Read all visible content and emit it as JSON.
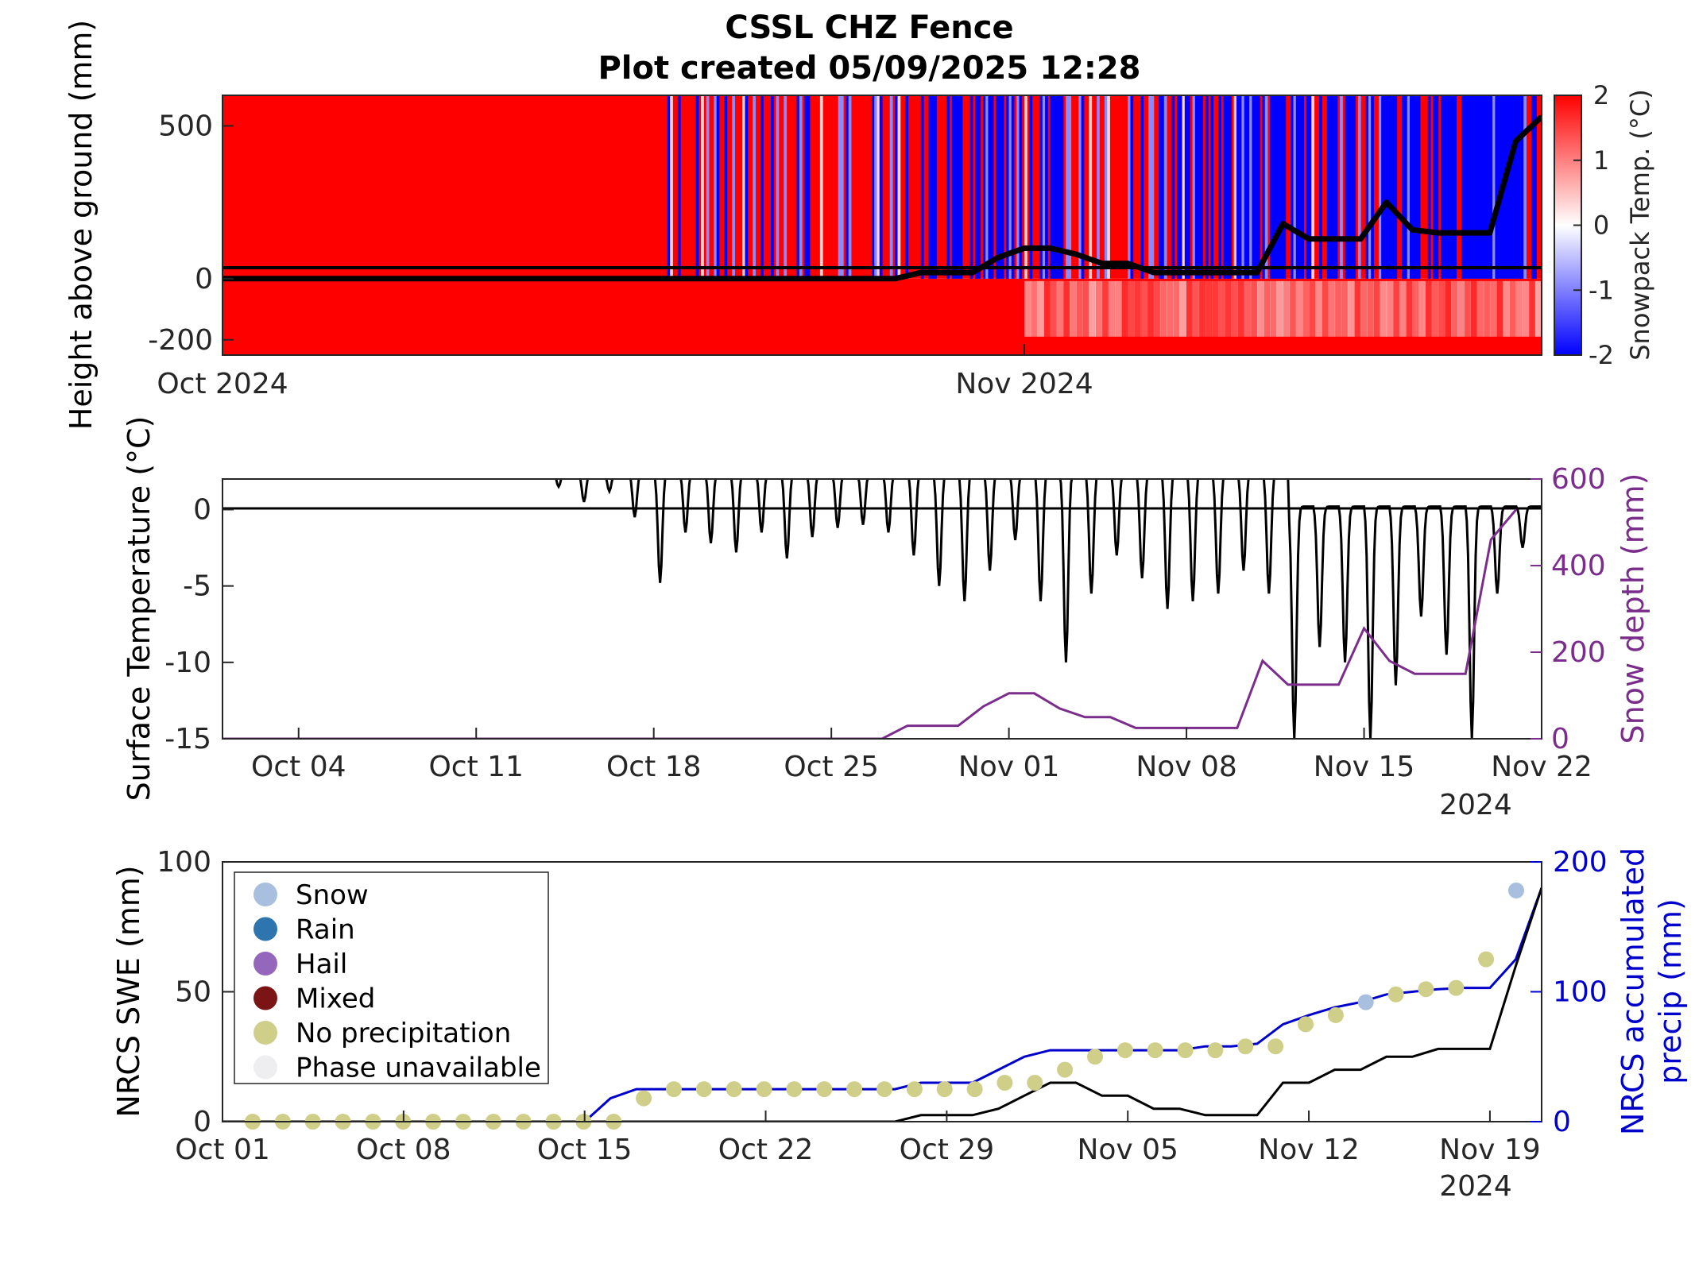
{
  "title": {
    "line1": "CSSL CHZ Fence",
    "line2": "Plot created 05/09/2025 12:28"
  },
  "colors": {
    "warm": "#ff0000",
    "cold": "#0000ff",
    "snow_depth": "#7b2d8b",
    "precip": "#0000cc",
    "swe": "#000000",
    "axis": "#262626"
  },
  "chart_data": [
    {
      "id": "snowpack-profile",
      "type": "heatmap",
      "xlabel": "",
      "ylabel": "Height above ground (mm)",
      "xlim": [
        "2024-10-01",
        "2024-11-21"
      ],
      "ylim": [
        -250,
        600
      ],
      "yticks": [
        500,
        0,
        -200
      ],
      "ytick_labels": [
        "500",
        "0",
        "-200"
      ],
      "xticks": [
        "2024-10-01",
        "2024-11-01"
      ],
      "xtick_labels": [
        "Oct 2024",
        "Nov 2024"
      ],
      "colorbar": {
        "label": "Snowpack Temp. (°C)",
        "range": [
          -2,
          2
        ],
        "ticks": [
          "2",
          "1",
          "0",
          "-1",
          "-2"
        ],
        "colormap": "blue-white-red"
      },
      "zero_line": 0,
      "snow_depth_overlay": {
        "x": [
          "2024-10-01",
          "2024-10-27",
          "2024-10-28",
          "2024-10-30",
          "2024-10-31",
          "2024-11-01",
          "2024-11-02",
          "2024-11-03",
          "2024-11-04",
          "2024-11-05",
          "2024-11-06",
          "2024-11-10",
          "2024-11-11",
          "2024-11-12",
          "2024-11-14",
          "2024-11-15",
          "2024-11-16",
          "2024-11-17",
          "2024-11-18",
          "2024-11-19",
          "2024-11-20",
          "2024-11-21"
        ],
        "y": [
          0,
          0,
          20,
          20,
          70,
          100,
          100,
          80,
          50,
          50,
          20,
          20,
          180,
          130,
          130,
          250,
          160,
          150,
          150,
          150,
          450,
          530
        ]
      }
    },
    {
      "id": "surface-temperature",
      "type": "line",
      "xlabel": "",
      "ylabel": "Surface Temperature (°C)",
      "ylabel2": "Snow depth (mm)",
      "ylim": [
        -15,
        2
      ],
      "ylim2": [
        0,
        600
      ],
      "yticks": [
        0,
        -5,
        -10,
        -15
      ],
      "ytick_labels": [
        "0",
        "-5",
        "-10",
        "-15"
      ],
      "yticks2": [
        600,
        400,
        200,
        0
      ],
      "ytick_labels2": [
        "600",
        "400",
        "200",
        "0"
      ],
      "xlim": [
        "2024-10-01",
        "2024-11-22"
      ],
      "xticks": [
        "2024-10-04",
        "2024-10-11",
        "2024-10-18",
        "2024-10-25",
        "2024-11-01",
        "2024-11-08",
        "2024-11-15",
        "2024-11-22"
      ],
      "xtick_labels": [
        "Oct 04",
        "Oct 11",
        "Oct 18",
        "Oct 25",
        "Nov 01",
        "Nov 08",
        "Nov 15",
        "Nov 22"
      ],
      "year_label": "2024",
      "series": [
        {
          "name": "Surface temperature",
          "daily_min": [
            [
              "2024-10-14",
              1.5
            ],
            [
              "2024-10-15",
              0.5
            ],
            [
              "2024-10-16",
              1.2
            ],
            [
              "2024-10-17",
              -0.5
            ],
            [
              "2024-10-18",
              -4.8
            ],
            [
              "2024-10-19",
              -1.5
            ],
            [
              "2024-10-20",
              -2.2
            ],
            [
              "2024-10-21",
              -2.8
            ],
            [
              "2024-10-22",
              -1.5
            ],
            [
              "2024-10-23",
              -3.2
            ],
            [
              "2024-10-24",
              -1.8
            ],
            [
              "2024-10-25",
              -1.2
            ],
            [
              "2024-10-26",
              -1.0
            ],
            [
              "2024-10-27",
              -1.5
            ],
            [
              "2024-10-28",
              -3.0
            ],
            [
              "2024-10-29",
              -5.0
            ],
            [
              "2024-10-30",
              -6.0
            ],
            [
              "2024-10-31",
              -4.0
            ],
            [
              "2024-11-01",
              -2.0
            ],
            [
              "2024-11-02",
              -6.0
            ],
            [
              "2024-11-03",
              -10.0
            ],
            [
              "2024-11-04",
              -5.5
            ],
            [
              "2024-11-05",
              -3.0
            ],
            [
              "2024-11-06",
              -4.5
            ],
            [
              "2024-11-07",
              -6.5
            ],
            [
              "2024-11-08",
              -6.0
            ],
            [
              "2024-11-09",
              -5.5
            ],
            [
              "2024-11-10",
              -4.0
            ],
            [
              "2024-11-11",
              -5.5
            ],
            [
              "2024-11-12",
              -15.0
            ],
            [
              "2024-11-13",
              -9.0
            ],
            [
              "2024-11-14",
              -10.0
            ],
            [
              "2024-11-15",
              -15.0
            ],
            [
              "2024-11-16",
              -11.5
            ],
            [
              "2024-11-17",
              -7.0
            ],
            [
              "2024-11-18",
              -9.5
            ],
            [
              "2024-11-19",
              -15.0
            ],
            [
              "2024-11-20",
              -5.5
            ],
            [
              "2024-11-21",
              -2.5
            ],
            [
              "2024-11-22",
              -1.0
            ]
          ]
        },
        {
          "name": "Snow depth",
          "x": [
            "2024-10-01",
            "2024-10-27",
            "2024-10-28",
            "2024-10-30",
            "2024-10-31",
            "2024-11-01",
            "2024-11-02",
            "2024-11-03",
            "2024-11-04",
            "2024-11-05",
            "2024-11-06",
            "2024-11-10",
            "2024-11-11",
            "2024-11-12",
            "2024-11-14",
            "2024-11-15",
            "2024-11-16",
            "2024-11-17",
            "2024-11-18",
            "2024-11-19",
            "2024-11-20",
            "2024-11-21"
          ],
          "y": [
            0,
            0,
            30,
            30,
            75,
            105,
            105,
            70,
            50,
            50,
            25,
            25,
            180,
            125,
            125,
            255,
            180,
            150,
            150,
            150,
            460,
            530
          ]
        }
      ]
    },
    {
      "id": "nrcs-swe-precip",
      "type": "line",
      "xlabel": "",
      "ylabel": "NRCS SWE (mm)",
      "ylabel2_line1": "NRCS accumulated",
      "ylabel2_line2": "precip (mm)",
      "ylim": [
        0,
        100
      ],
      "ylim2": [
        0,
        200
      ],
      "yticks": [
        100,
        50,
        0
      ],
      "ytick_labels": [
        "100",
        "50",
        "0"
      ],
      "yticks2": [
        200,
        100,
        0
      ],
      "ytick_labels2": [
        "200",
        "100",
        "0"
      ],
      "xlim": [
        "2024-10-01",
        "2024-11-21"
      ],
      "xticks": [
        "2024-10-01",
        "2024-10-08",
        "2024-10-15",
        "2024-10-22",
        "2024-10-29",
        "2024-11-05",
        "2024-11-12",
        "2024-11-19"
      ],
      "xtick_labels": [
        "Oct 01",
        "Oct 08",
        "Oct 15",
        "Oct 22",
        "Oct 29",
        "Nov 05",
        "Nov 12",
        "Nov 19"
      ],
      "year_label": "2024",
      "legend_position": "top-left",
      "legend": [
        {
          "label": "Snow",
          "color": "#a8bfe0"
        },
        {
          "label": "Rain",
          "color": "#2e75b0"
        },
        {
          "label": "Hail",
          "color": "#9467bd"
        },
        {
          "label": "Mixed",
          "color": "#7b1414"
        },
        {
          "label": "No precipitation",
          "color": "#cfcf8a"
        },
        {
          "label": "Phase unavailable",
          "color": "#eeeef0"
        }
      ],
      "series": [
        {
          "name": "NRCS SWE",
          "x": [
            "2024-10-01",
            "2024-10-27",
            "2024-10-28",
            "2024-10-30",
            "2024-10-31",
            "2024-11-01",
            "2024-11-02",
            "2024-11-03",
            "2024-11-04",
            "2024-11-05",
            "2024-11-06",
            "2024-11-07",
            "2024-11-08",
            "2024-11-10",
            "2024-11-11",
            "2024-11-12",
            "2024-11-13",
            "2024-11-14",
            "2024-11-15",
            "2024-11-16",
            "2024-11-17",
            "2024-11-18",
            "2024-11-19",
            "2024-11-20",
            "2024-11-21"
          ],
          "y": [
            0,
            0,
            2.5,
            2.5,
            5,
            10,
            15,
            15,
            10,
            10,
            5,
            5,
            2.5,
            2.5,
            15,
            15,
            20,
            20,
            25,
            25,
            28,
            28,
            28,
            60,
            90
          ]
        },
        {
          "name": "NRCS accumulated precip",
          "x": [
            "2024-10-01",
            "2024-10-14",
            "2024-10-15",
            "2024-10-16",
            "2024-10-17",
            "2024-10-27",
            "2024-10-28",
            "2024-10-30",
            "2024-10-31",
            "2024-11-01",
            "2024-11-02",
            "2024-11-03",
            "2024-11-07",
            "2024-11-08",
            "2024-11-09",
            "2024-11-10",
            "2024-11-11",
            "2024-11-12",
            "2024-11-13",
            "2024-11-14",
            "2024-11-15",
            "2024-11-16",
            "2024-11-17",
            "2024-11-18",
            "2024-11-19",
            "2024-11-20",
            "2024-11-21"
          ],
          "y": [
            0,
            0,
            0,
            18,
            25,
            25,
            30,
            30,
            40,
            50,
            55,
            55,
            55,
            58,
            58,
            60,
            75,
            82,
            88,
            92,
            98,
            100,
            102,
            103,
            103,
            125,
            180
          ]
        },
        {
          "name": "Precip phase markers",
          "points": [
            [
              "2024-10-02",
              0,
              "No precipitation"
            ],
            [
              "2024-10-03",
              0,
              "No precipitation"
            ],
            [
              "2024-10-04",
              0,
              "No precipitation"
            ],
            [
              "2024-10-05",
              0,
              "No precipitation"
            ],
            [
              "2024-10-06",
              0,
              "No precipitation"
            ],
            [
              "2024-10-07",
              0,
              "No precipitation"
            ],
            [
              "2024-10-08",
              0,
              "No precipitation"
            ],
            [
              "2024-10-09",
              0,
              "No precipitation"
            ],
            [
              "2024-10-10",
              0,
              "No precipitation"
            ],
            [
              "2024-10-11",
              0,
              "No precipitation"
            ],
            [
              "2024-10-12",
              0,
              "No precipitation"
            ],
            [
              "2024-10-13",
              0,
              "No precipitation"
            ],
            [
              "2024-10-14",
              0,
              "No precipitation"
            ],
            [
              "2024-10-15",
              18,
              "No precipitation"
            ],
            [
              "2024-10-16",
              25,
              "No precipitation"
            ],
            [
              "2024-10-17",
              25,
              "No precipitation"
            ],
            [
              "2024-10-18",
              25,
              "No precipitation"
            ],
            [
              "2024-10-19",
              25,
              "No precipitation"
            ],
            [
              "2024-10-20",
              25,
              "No precipitation"
            ],
            [
              "2024-10-21",
              25,
              "No precipitation"
            ],
            [
              "2024-10-22",
              25,
              "No precipitation"
            ],
            [
              "2024-10-23",
              25,
              "No precipitation"
            ],
            [
              "2024-10-24",
              25,
              "No precipitation"
            ],
            [
              "2024-10-25",
              25,
              "No precipitation"
            ],
            [
              "2024-10-26",
              25,
              "No precipitation"
            ],
            [
              "2024-10-27",
              30,
              "No precipitation"
            ],
            [
              "2024-10-28",
              30,
              "No precipitation"
            ],
            [
              "2024-10-29",
              40,
              "No precipitation"
            ],
            [
              "2024-10-30",
              50,
              "No precipitation"
            ],
            [
              "2024-10-31",
              55,
              "No precipitation"
            ],
            [
              "2024-11-01",
              55,
              "No precipitation"
            ],
            [
              "2024-11-02",
              55,
              "No precipitation"
            ],
            [
              "2024-11-03",
              55,
              "No precipitation"
            ],
            [
              "2024-11-04",
              58,
              "No precipitation"
            ],
            [
              "2024-11-05",
              58,
              "No precipitation"
            ],
            [
              "2024-11-06",
              75,
              "No precipitation"
            ],
            [
              "2024-11-07",
              82,
              "No precipitation"
            ],
            [
              "2024-11-08",
              92,
              "Snow"
            ],
            [
              "2024-11-09",
              98,
              "No precipitation"
            ],
            [
              "2024-11-10",
              102,
              "No precipitation"
            ],
            [
              "2024-11-11",
              103,
              "No precipitation"
            ],
            [
              "2024-11-12",
              125,
              "No precipitation"
            ],
            [
              "2024-11-13",
              178,
              "Snow"
            ]
          ]
        }
      ]
    }
  ]
}
